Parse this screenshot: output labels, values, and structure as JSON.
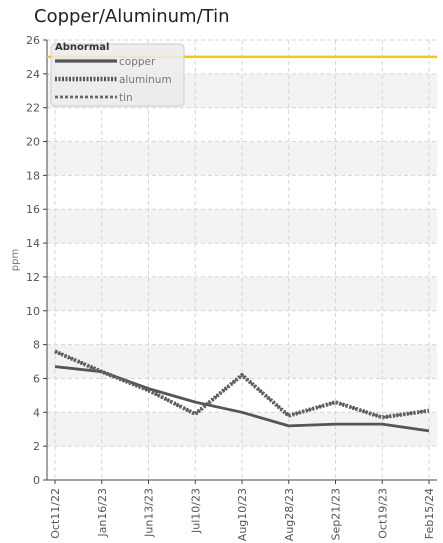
{
  "chart_data": {
    "type": "line",
    "title": "Copper/Aluminum/Tin",
    "xlabel": "",
    "ylabel": "ppm",
    "x": [
      "Oct11/22",
      "Jan16/23",
      "Jun13/23",
      "Jul10/23",
      "Aug10/23",
      "Aug28/23",
      "Sep21/23",
      "Oct19/23",
      "Feb15/24"
    ],
    "ylim": [
      0,
      26
    ],
    "yticks": [
      0,
      2,
      4,
      6,
      8,
      10,
      12,
      14,
      16,
      18,
      20,
      22,
      24,
      26
    ],
    "grid": true,
    "legend_position": "top-left",
    "series": [
      {
        "name": "copper",
        "style": "solid",
        "color": "#555555",
        "values": [
          6.7,
          6.4,
          5.4,
          4.6,
          4.0,
          3.2,
          3.3,
          3.3,
          2.9
        ]
      },
      {
        "name": "aluminum",
        "style": "dotted",
        "color": "#555555",
        "values": [
          7.6,
          6.4,
          5.3,
          3.9,
          6.2,
          3.8,
          4.6,
          3.7,
          4.1
        ]
      },
      {
        "name": "tin",
        "style": "dashed",
        "color": "#666666",
        "values": [
          7.6,
          6.4,
          5.3,
          3.9,
          6.2,
          3.8,
          4.6,
          3.7,
          4.1
        ]
      }
    ],
    "threshold": {
      "label": "Abnormal",
      "value": 25,
      "color": "#f5c518"
    },
    "band_color": "#f3f3f3"
  }
}
